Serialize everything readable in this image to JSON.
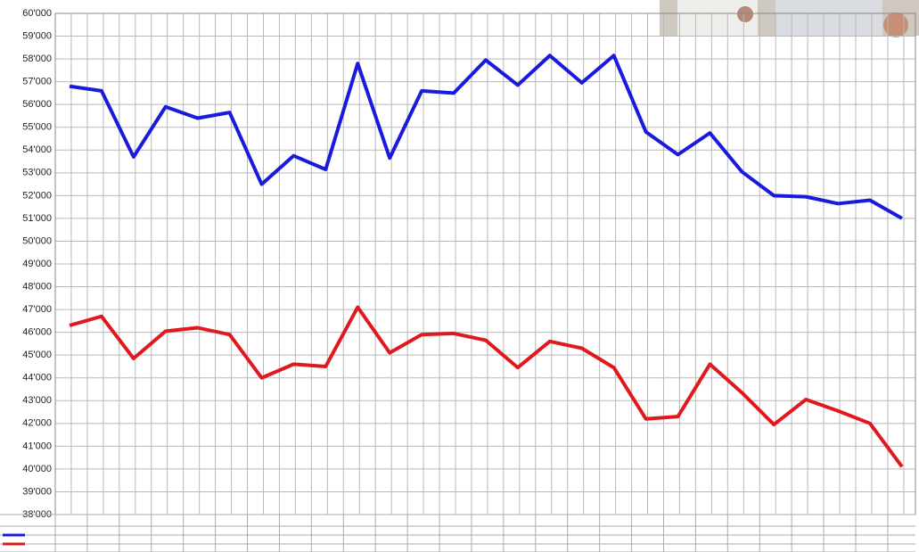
{
  "chart_data": {
    "type": "line",
    "categories": [
      null,
      null,
      null,
      null,
      null,
      null,
      null,
      null,
      null,
      null,
      null,
      null,
      null,
      null,
      null,
      null,
      null,
      null,
      null,
      null,
      null,
      null,
      null,
      null,
      null,
      null,
      null
    ],
    "series": [
      {
        "color": "#1a1adc",
        "values": [
          56800,
          56600,
          53700,
          55900,
          55400,
          55650,
          52500,
          53750,
          53150,
          57800,
          53650,
          56600,
          56500,
          57950,
          56850,
          58150,
          56950,
          58150,
          54800,
          53800,
          54750,
          53050,
          52000,
          51950,
          51650,
          51800,
          51000
        ]
      },
      {
        "color": "#e0191e",
        "values": [
          46300,
          46700,
          44850,
          46050,
          46200,
          45900,
          44000,
          44600,
          44500,
          47100,
          45100,
          45900,
          45950,
          45650,
          44450,
          45600,
          45300,
          44450,
          42200,
          42300,
          44600,
          43350,
          41950,
          43050,
          42550,
          42000,
          40100
        ]
      }
    ],
    "ylim": [
      38000,
      60000
    ],
    "yticks": [
      {
        "value": 38000,
        "label": "38'000"
      },
      {
        "value": 39000,
        "label": "39'000"
      },
      {
        "value": 40000,
        "label": "40'000"
      },
      {
        "value": 41000,
        "label": "41'000"
      },
      {
        "value": 42000,
        "label": "42'000"
      },
      {
        "value": 43000,
        "label": "43'000"
      },
      {
        "value": 44000,
        "label": "44'000"
      },
      {
        "value": 45000,
        "label": "45'000"
      },
      {
        "value": 46000,
        "label": "46'000"
      },
      {
        "value": 47000,
        "label": "47'000"
      },
      {
        "value": 48000,
        "label": "48'000"
      },
      {
        "value": 49000,
        "label": "49'000"
      },
      {
        "value": 50000,
        "label": "50'000"
      },
      {
        "value": 51000,
        "label": "51'000"
      },
      {
        "value": 52000,
        "label": "52'000"
      },
      {
        "value": 53000,
        "label": "53'000"
      },
      {
        "value": 54000,
        "label": "54'000"
      },
      {
        "value": 55000,
        "label": "55'000"
      },
      {
        "value": 56000,
        "label": "56'000"
      },
      {
        "value": 57000,
        "label": "57'000"
      },
      {
        "value": 58000,
        "label": "58'000"
      },
      {
        "value": 59000,
        "label": "59'000"
      },
      {
        "value": 60000,
        "label": "60'000"
      }
    ],
    "grid": true
  }
}
